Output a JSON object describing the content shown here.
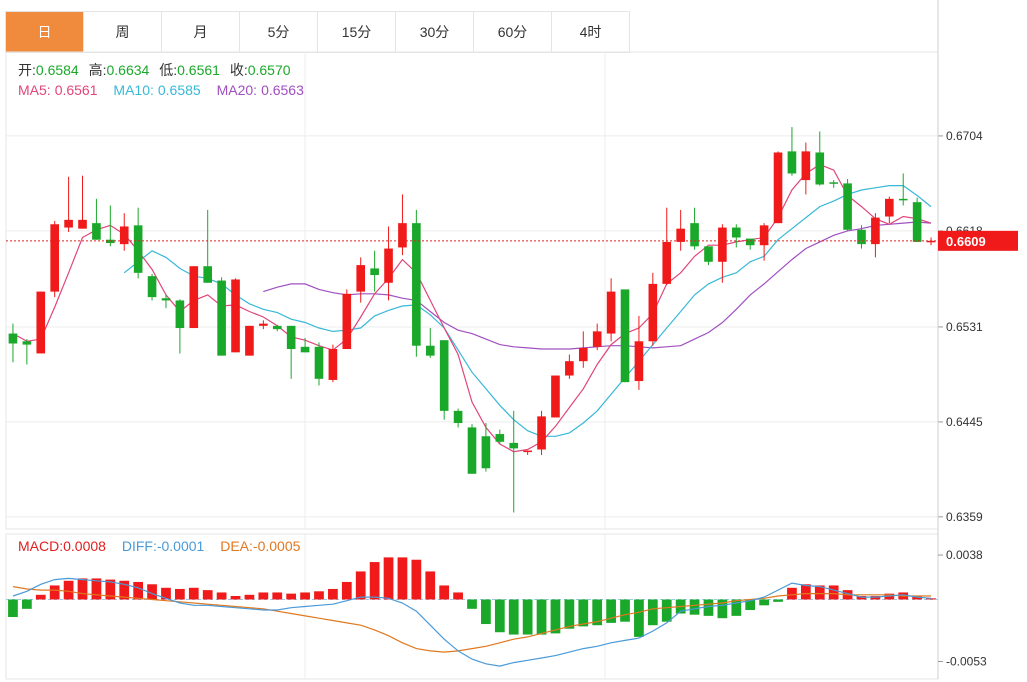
{
  "tabs": [
    {
      "label": "日",
      "active": true
    },
    {
      "label": "周",
      "active": false
    },
    {
      "label": "月",
      "active": false
    },
    {
      "label": "5分",
      "active": false
    },
    {
      "label": "15分",
      "active": false
    },
    {
      "label": "30分",
      "active": false
    },
    {
      "label": "60分",
      "active": false
    },
    {
      "label": "4时",
      "active": false
    }
  ],
  "ohlc_legend": {
    "open_label": "开:",
    "open": "0.6584",
    "high_label": "高:",
    "high": "0.6634",
    "low_label": "低:",
    "low": "0.6561",
    "close_label": "收:",
    "close": "0.6570"
  },
  "ma_legend": {
    "ma5_label": "MA5:",
    "ma5": "0.6561",
    "ma10_label": "MA10:",
    "ma10": "0.6585",
    "ma20_label": "MA20:",
    "ma20": "0.6563"
  },
  "macd_legend": {
    "macd_label": "MACD:",
    "macd": "0.0008",
    "diff_label": "DIFF:",
    "diff": "-0.0001",
    "dea_label": "DEA:",
    "dea": "-0.0005"
  },
  "price_axis_ticks": [
    "0.6704",
    "0.6618",
    "0.6531",
    "0.6445",
    "0.6359"
  ],
  "current_price": "0.6609",
  "macd_axis_ticks": [
    "0.0038",
    "-0.0053"
  ],
  "colors": {
    "up": "#f01a1a",
    "down": "#1aa82a",
    "ma5": "#e0457b",
    "ma10": "#38b8d8",
    "ma20": "#a050c0",
    "diff": "#4a9ad8",
    "dea": "#e07820",
    "accent": "#f08a3c"
  },
  "chart_data": {
    "type": "candlestick",
    "price_range": [
      0.6348,
      0.678
    ],
    "macd_range": [
      -0.0068,
      0.0056
    ],
    "candles": [
      [
        0.6525,
        0.6516,
        0.6534,
        0.6499
      ],
      [
        0.6518,
        0.6515,
        0.652,
        0.6497
      ],
      [
        0.6507,
        0.6563,
        0.6563,
        0.6507
      ],
      [
        0.6563,
        0.6624,
        0.6627,
        0.6558
      ],
      [
        0.6621,
        0.6628,
        0.6667,
        0.6617
      ],
      [
        0.662,
        0.6628,
        0.6668,
        0.662
      ],
      [
        0.6625,
        0.661,
        0.6647,
        0.661
      ],
      [
        0.661,
        0.6607,
        0.6641,
        0.6604
      ],
      [
        0.6606,
        0.6622,
        0.6634,
        0.66
      ],
      [
        0.6623,
        0.658,
        0.6639,
        0.6575
      ],
      [
        0.6577,
        0.6558,
        0.6579,
        0.6555
      ],
      [
        0.6557,
        0.6555,
        0.656,
        0.6548
      ],
      [
        0.6555,
        0.653,
        0.6556,
        0.6507
      ],
      [
        0.653,
        0.6586,
        0.6586,
        0.653
      ],
      [
        0.6586,
        0.6571,
        0.6637,
        0.6571
      ],
      [
        0.6573,
        0.6505,
        0.6576,
        0.6505
      ],
      [
        0.6508,
        0.6574,
        0.6575,
        0.6508
      ],
      [
        0.6505,
        0.6532,
        0.6532,
        0.6505
      ],
      [
        0.6532,
        0.6534,
        0.6537,
        0.6529
      ],
      [
        0.6532,
        0.6529,
        0.6533,
        0.6527
      ],
      [
        0.6532,
        0.6511,
        0.6532,
        0.6484
      ],
      [
        0.6513,
        0.6508,
        0.6521,
        0.6508
      ],
      [
        0.6513,
        0.6484,
        0.6517,
        0.6478
      ],
      [
        0.6483,
        0.6511,
        0.6515,
        0.6481
      ],
      [
        0.6511,
        0.6561,
        0.6565,
        0.6511
      ],
      [
        0.6563,
        0.6587,
        0.6594,
        0.6553
      ],
      [
        0.6584,
        0.6578,
        0.66,
        0.6563
      ],
      [
        0.6571,
        0.6602,
        0.6622,
        0.6555
      ],
      [
        0.6603,
        0.6625,
        0.6651,
        0.6596
      ],
      [
        0.6625,
        0.6514,
        0.6637,
        0.6504
      ],
      [
        0.6514,
        0.6505,
        0.653,
        0.6503
      ],
      [
        0.6519,
        0.6455,
        0.6519,
        0.6447
      ],
      [
        0.6455,
        0.6444,
        0.6457,
        0.644
      ],
      [
        0.644,
        0.6398,
        0.6443,
        0.6398
      ],
      [
        0.6432,
        0.6403,
        0.6444,
        0.64
      ],
      [
        0.6434,
        0.6427,
        0.6438,
        0.6425
      ],
      [
        0.6426,
        0.6421,
        0.6455,
        0.6363
      ],
      [
        0.6419,
        0.6419,
        0.6419,
        0.6415
      ],
      [
        0.642,
        0.645,
        0.6455,
        0.6415
      ],
      [
        0.6449,
        0.6487,
        0.6487,
        0.6449
      ],
      [
        0.6487,
        0.65,
        0.6506,
        0.6484
      ],
      [
        0.65,
        0.6512,
        0.6527,
        0.6494
      ],
      [
        0.6513,
        0.6527,
        0.6534,
        0.651
      ],
      [
        0.6525,
        0.6563,
        0.6575,
        0.6518
      ],
      [
        0.6565,
        0.6481,
        0.6564,
        0.6481
      ],
      [
        0.6482,
        0.6518,
        0.6541,
        0.6474
      ],
      [
        0.6518,
        0.657,
        0.658,
        0.6514
      ],
      [
        0.657,
        0.6608,
        0.6639,
        0.6569
      ],
      [
        0.6608,
        0.662,
        0.6637,
        0.66
      ],
      [
        0.6625,
        0.6604,
        0.6639,
        0.6601
      ],
      [
        0.6604,
        0.659,
        0.6593,
        0.6587
      ],
      [
        0.659,
        0.6621,
        0.6624,
        0.6571
      ],
      [
        0.6621,
        0.6612,
        0.6624,
        0.6603
      ],
      [
        0.6611,
        0.6605,
        0.6607,
        0.6601
      ],
      [
        0.6605,
        0.6623,
        0.6625,
        0.6591
      ],
      [
        0.6625,
        0.6689,
        0.669,
        0.6625
      ],
      [
        0.669,
        0.667,
        0.6712,
        0.6668
      ],
      [
        0.6664,
        0.669,
        0.6698,
        0.6651
      ],
      [
        0.6689,
        0.666,
        0.6708,
        0.6659
      ],
      [
        0.6662,
        0.6661,
        0.6664,
        0.6657
      ],
      [
        0.6661,
        0.6619,
        0.6665,
        0.6618
      ],
      [
        0.6619,
        0.6606,
        0.6623,
        0.6602
      ],
      [
        0.6606,
        0.663,
        0.6634,
        0.6594
      ],
      [
        0.6631,
        0.6647,
        0.6649,
        0.6625
      ],
      [
        0.6647,
        0.6646,
        0.667,
        0.6641
      ],
      [
        0.6644,
        0.6608,
        0.6648,
        0.6608
      ],
      [
        0.6609,
        0.6609,
        0.6612,
        0.6605
      ]
    ],
    "ma5": [
      0.6525,
      0.6518,
      0.652,
      0.6549,
      0.658,
      0.6612,
      0.6619,
      0.6623,
      0.6615,
      0.66,
      0.6583,
      0.656,
      0.6545,
      0.6555,
      0.656,
      0.655,
      0.6551,
      0.6545,
      0.654,
      0.6532,
      0.6522,
      0.6519,
      0.6514,
      0.651,
      0.652,
      0.654,
      0.6561,
      0.6575,
      0.6592,
      0.658,
      0.6555,
      0.653,
      0.6506,
      0.6463,
      0.644,
      0.6425,
      0.6418,
      0.642,
      0.6427,
      0.6441,
      0.6458,
      0.6475,
      0.6497,
      0.6515,
      0.6525,
      0.653,
      0.6543,
      0.657,
      0.658,
      0.6595,
      0.6605,
      0.6605,
      0.6608,
      0.661,
      0.6612,
      0.663,
      0.6655,
      0.667,
      0.6678,
      0.6673,
      0.665,
      0.664,
      0.6629,
      0.6624,
      0.6631,
      0.6629,
      0.6625
    ],
    "ma10": [
      null,
      null,
      null,
      null,
      null,
      null,
      null,
      null,
      0.658,
      0.659,
      0.66,
      0.6594,
      0.6584,
      0.6577,
      0.6575,
      0.657,
      0.656,
      0.6552,
      0.6547,
      0.6544,
      0.6538,
      0.6535,
      0.653,
      0.6527,
      0.6528,
      0.653,
      0.6541,
      0.6546,
      0.655,
      0.6551,
      0.6542,
      0.653,
      0.651,
      0.649,
      0.6475,
      0.646,
      0.6447,
      0.6437,
      0.6432,
      0.6432,
      0.6435,
      0.6444,
      0.6455,
      0.647,
      0.6485,
      0.65,
      0.6515,
      0.653,
      0.6545,
      0.656,
      0.657,
      0.6576,
      0.658,
      0.659,
      0.6595,
      0.661,
      0.662,
      0.663,
      0.664,
      0.6645,
      0.6651,
      0.6655,
      0.6657,
      0.6659,
      0.6659,
      0.665,
      0.664
    ],
    "ma20": [
      null,
      null,
      null,
      null,
      null,
      null,
      null,
      null,
      null,
      null,
      null,
      null,
      null,
      null,
      null,
      null,
      null,
      null,
      0.6563,
      0.6567,
      0.657,
      0.657,
      0.6565,
      0.6562,
      0.656,
      0.6561,
      0.6561,
      0.656,
      0.6557,
      0.6555,
      0.6545,
      0.6535,
      0.6528,
      0.6525,
      0.652,
      0.6515,
      0.6513,
      0.6512,
      0.6511,
      0.6511,
      0.6511,
      0.6512,
      0.6513,
      0.6514,
      0.6514,
      0.6513,
      0.6512,
      0.6513,
      0.6514,
      0.652,
      0.6526,
      0.6535,
      0.6547,
      0.656,
      0.657,
      0.6581,
      0.6592,
      0.6602,
      0.6608,
      0.6614,
      0.6618,
      0.662,
      0.6623,
      0.6624,
      0.6625,
      0.6626,
      0.6625
    ],
    "macd_hist": [
      -0.0015,
      -0.0008,
      0.0004,
      0.0012,
      0.0016,
      0.0018,
      0.0018,
      0.0017,
      0.0016,
      0.0015,
      0.0013,
      0.001,
      0.0009,
      0.001,
      0.0008,
      0.0006,
      0.0003,
      0.0004,
      0.0006,
      0.0006,
      0.0005,
      0.0006,
      0.0007,
      0.0009,
      0.0015,
      0.0024,
      0.0032,
      0.0036,
      0.0036,
      0.0034,
      0.0024,
      0.0012,
      0.0006,
      -0.0008,
      -0.0021,
      -0.0028,
      -0.003,
      -0.003,
      -0.003,
      -0.0029,
      -0.0025,
      -0.0023,
      -0.0022,
      -0.002,
      -0.0019,
      -0.0032,
      -0.0022,
      -0.0019,
      -0.0012,
      -0.0013,
      -0.0014,
      -0.0016,
      -0.0014,
      -0.0009,
      -0.0005,
      -0.0002,
      0.001,
      0.0013,
      0.0012,
      0.0012,
      0.0008,
      0.0003,
      0.0003,
      0.0005,
      0.0006,
      0.0003,
      0.0001
    ],
    "diff": [
      0.0003,
      0.0007,
      0.0013,
      0.0017,
      0.0018,
      0.0017,
      0.0016,
      0.0015,
      0.0013,
      0.001,
      0.0005,
      0.0001,
      -0.0003,
      -0.0005,
      -0.0005,
      -0.0006,
      -0.0007,
      -0.0008,
      -0.0009,
      -0.0009,
      -0.0007,
      -0.0006,
      -0.0005,
      -0.0004,
      -0.0001,
      0.0002,
      0.0002,
      0.0001,
      -0.0003,
      -0.001,
      -0.0022,
      -0.0034,
      -0.0044,
      -0.0051,
      -0.0055,
      -0.0057,
      -0.0054,
      -0.0052,
      -0.005,
      -0.0048,
      -0.0045,
      -0.0042,
      -0.004,
      -0.0037,
      -0.0035,
      -0.0033,
      -0.0027,
      -0.002,
      -0.001,
      -0.0008,
      -0.0006,
      -0.0005,
      -0.0003,
      -0.0001,
      0.0002,
      0.0008,
      0.0014,
      0.0012,
      0.0011,
      0.0008,
      0.0005,
      0.0002,
      0.0002,
      0.0003,
      0.0004,
      0.0002,
      0.0001
    ],
    "dea": [
      0.0011,
      0.0009,
      0.0008,
      0.0008,
      0.0007,
      0.0005,
      0.0004,
      0.0003,
      0.0002,
      0.0001,
      0.0,
      -0.0001,
      -0.0002,
      -0.0003,
      -0.0004,
      -0.0005,
      -0.0006,
      -0.0007,
      -0.0008,
      -0.001,
      -0.0012,
      -0.0014,
      -0.0016,
      -0.0018,
      -0.002,
      -0.0022,
      -0.0026,
      -0.0031,
      -0.0037,
      -0.0042,
      -0.0044,
      -0.0045,
      -0.0044,
      -0.0042,
      -0.004,
      -0.0037,
      -0.0034,
      -0.0032,
      -0.0029,
      -0.0026,
      -0.0023,
      -0.0021,
      -0.0019,
      -0.0016,
      -0.0013,
      -0.0011,
      -0.0008,
      -0.0007,
      -0.0006,
      -0.0005,
      -0.0004,
      -0.0003,
      -0.0001,
      0.0,
      0.0001,
      0.0003,
      0.0004,
      0.0005,
      0.0005,
      0.0005,
      0.0004,
      0.0004,
      0.0004,
      0.0004,
      0.0003,
      0.0003,
      0.0003
    ]
  }
}
